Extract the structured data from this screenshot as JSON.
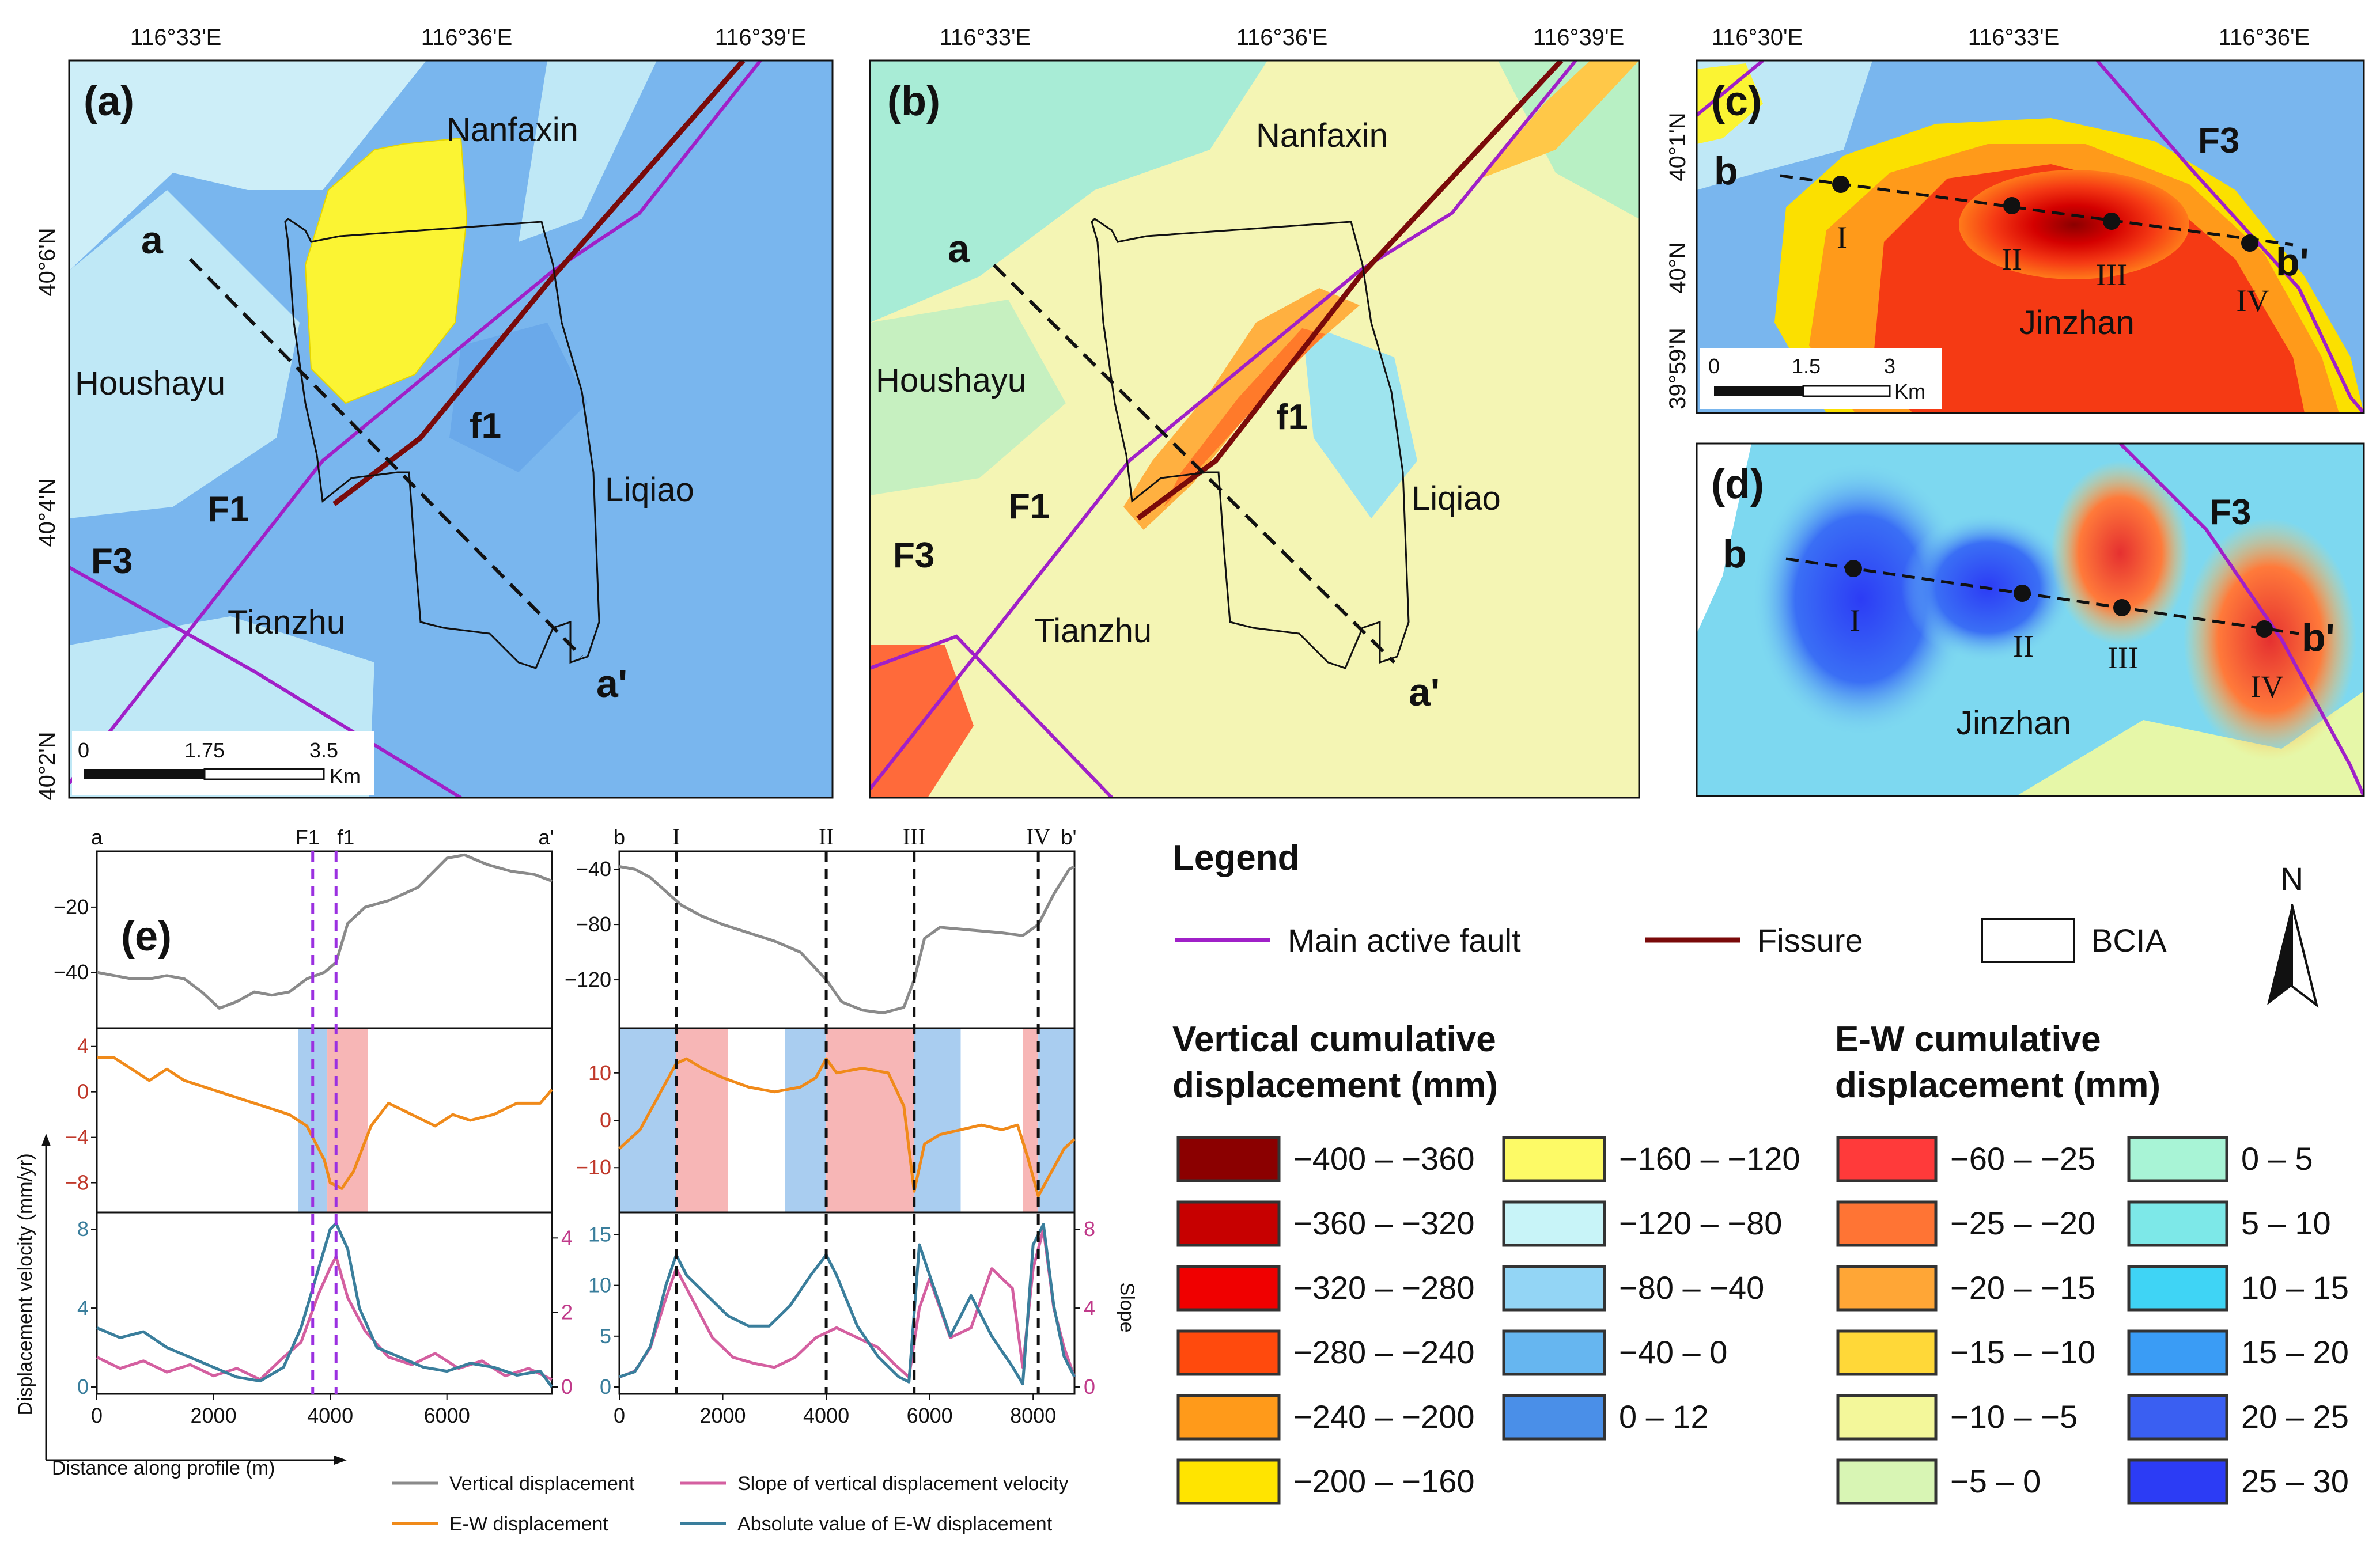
{
  "maps": {
    "a": {
      "label": "(a)",
      "lon_labels": [
        "116°33'E",
        "116°36'E",
        "116°39'E"
      ],
      "lat_labels": [
        "40°6'N",
        "40°4'N",
        "40°2'N"
      ],
      "places": {
        "nanfaxin": "Nanfaxin",
        "houshayu": "Houshayu",
        "liqiao": "Liqiao",
        "tianzhu": "Tianzhu"
      },
      "faults": {
        "f1": "F1",
        "f1_fissure": "f1",
        "f3": "F3"
      },
      "profile": {
        "start": "a",
        "end": "a'"
      },
      "scale": {
        "ticks": [
          "0",
          "1.75",
          "3.5"
        ],
        "unit": "Km"
      }
    },
    "b": {
      "label": "(b)",
      "lon_labels": [
        "116°33'E",
        "116°36'E",
        "116°39'E"
      ],
      "places": {
        "nanfaxin": "Nanfaxin",
        "houshayu": "Houshayu",
        "liqiao": "Liqiao",
        "tianzhu": "Tianzhu"
      },
      "faults": {
        "f1": "F1",
        "f1_fissure": "f1",
        "f3": "F3"
      },
      "profile": {
        "start": "a",
        "end": "a'"
      }
    },
    "c": {
      "label": "(c)",
      "lon_labels": [
        "116°30'E",
        "116°33'E",
        "116°36'E"
      ],
      "lat_labels": [
        "40°1'N",
        "40°N",
        "39°59'N"
      ],
      "place": "Jinzhan",
      "fault": "F3",
      "profile": {
        "start": "b",
        "end": "b'"
      },
      "points": [
        "I",
        "II",
        "III",
        "IV"
      ],
      "scale": {
        "ticks": [
          "0",
          "1.5",
          "3"
        ],
        "unit": "Km"
      }
    },
    "d": {
      "label": "(d)",
      "place": "Jinzhan",
      "fault": "F3",
      "profile": {
        "start": "b",
        "end": "b'"
      },
      "points": [
        "I",
        "II",
        "III",
        "IV"
      ]
    }
  },
  "profiles": {
    "label": "(e)",
    "left": {
      "start": "a",
      "end": "a'",
      "markers": [
        "F1",
        "f1"
      ],
      "marker_x_m": [
        3700,
        4100
      ],
      "x_ticks": [
        "0",
        "2000",
        "4000",
        "6000"
      ],
      "xlim": [
        0,
        7800
      ],
      "vertical_ticks": [
        "-20",
        "-40"
      ],
      "ew_ticks": [
        "4",
        "0",
        "-4",
        "-8"
      ],
      "vel_ticks": [
        "8",
        "4",
        "0"
      ],
      "slope_ticks": [
        "4",
        "2",
        "0"
      ],
      "bands": [
        {
          "from": 3450,
          "to": 3950,
          "color": "#a9cdf0"
        },
        {
          "from": 3950,
          "to": 4650,
          "color": "#f7b6b6"
        }
      ],
      "vertical": {
        "x": [
          0,
          300,
          600,
          900,
          1200,
          1500,
          1800,
          2100,
          2400,
          2700,
          3000,
          3300,
          3600,
          3900,
          4100,
          4300,
          4600,
          5000,
          5500,
          6000,
          6300,
          6700,
          7100,
          7500,
          7800
        ],
        "y": [
          -40,
          -41,
          -42,
          -42,
          -41,
          -42,
          -46,
          -51,
          -49,
          -46,
          -47,
          -46,
          -42,
          -40,
          -37,
          -25,
          -20,
          -18,
          -14,
          -5,
          -4,
          -7,
          -9,
          -10,
          -12
        ]
      },
      "ew": {
        "x": [
          0,
          300,
          600,
          900,
          1200,
          1500,
          1800,
          2100,
          2400,
          2700,
          3000,
          3300,
          3600,
          3900,
          4000,
          4200,
          4400,
          4700,
          5000,
          5400,
          5800,
          6100,
          6400,
          6800,
          7200,
          7600,
          7800
        ],
        "y": [
          3,
          3,
          2,
          1,
          2,
          1,
          0.5,
          0,
          -0.5,
          -1,
          -1.5,
          -2,
          -3,
          -6,
          -8,
          -8.5,
          -7,
          -3,
          -1,
          -2,
          -3,
          -2,
          -2.5,
          -2,
          -1,
          -1,
          0.2
        ]
      },
      "ew_abs": {
        "x": [
          0,
          400,
          800,
          1200,
          1600,
          2000,
          2400,
          2800,
          3200,
          3500,
          3800,
          4000,
          4100,
          4300,
          4500,
          4800,
          5200,
          5600,
          6000,
          6400,
          6800,
          7200,
          7600,
          7800
        ],
        "y": [
          3,
          2.5,
          2.8,
          2,
          1.5,
          1,
          0.5,
          0.3,
          1,
          3,
          6,
          8,
          8.3,
          7,
          4,
          2,
          1.5,
          1,
          0.8,
          1.2,
          1,
          0.6,
          0.8,
          0
        ]
      },
      "slope": {
        "x": [
          0,
          400,
          800,
          1200,
          1600,
          2000,
          2400,
          2800,
          3200,
          3500,
          3800,
          4000,
          4100,
          4300,
          4600,
          5000,
          5400,
          5800,
          6200,
          6600,
          7000,
          7400,
          7800
        ],
        "y": [
          0.8,
          0.5,
          0.7,
          0.4,
          0.6,
          0.3,
          0.5,
          0.2,
          0.8,
          1.2,
          2.5,
          3.2,
          3.5,
          2.4,
          1.5,
          0.8,
          0.6,
          0.9,
          0.5,
          0.7,
          0.3,
          0.5,
          0.2
        ]
      }
    },
    "right": {
      "start": "b",
      "end": "b'",
      "markers": [
        "I",
        "II",
        "III",
        "IV"
      ],
      "marker_x_m": [
        1100,
        4000,
        5700,
        8100
      ],
      "x_ticks": [
        "0",
        "2000",
        "4000",
        "6000",
        "8000"
      ],
      "xlim": [
        0,
        8800
      ],
      "vertical_ticks": [
        "-40",
        "-80",
        "-120"
      ],
      "ew_ticks": [
        "10",
        "0",
        "-10"
      ],
      "vel_ticks": [
        "15",
        "10",
        "5",
        "0"
      ],
      "slope_ticks": [
        "8",
        "4",
        "0"
      ],
      "bands": [
        {
          "from": 0,
          "to": 1100,
          "color": "#a9cdf0"
        },
        {
          "from": 1100,
          "to": 2100,
          "color": "#f7b6b6"
        },
        {
          "from": 3200,
          "to": 4000,
          "color": "#a9cdf0"
        },
        {
          "from": 4000,
          "to": 5700,
          "color": "#f7b6b6"
        },
        {
          "from": 5700,
          "to": 6600,
          "color": "#a9cdf0"
        },
        {
          "from": 7800,
          "to": 8100,
          "color": "#f7b6b6"
        },
        {
          "from": 8100,
          "to": 8800,
          "color": "#a9cdf0"
        }
      ],
      "vertical": {
        "x": [
          0,
          300,
          600,
          900,
          1200,
          1600,
          2000,
          2500,
          3000,
          3500,
          4000,
          4300,
          4700,
          5100,
          5500,
          5700,
          5900,
          6200,
          6800,
          7400,
          7800,
          8100,
          8400,
          8700,
          8800
        ],
        "y": [
          -38,
          -40,
          -46,
          -56,
          -66,
          -74,
          -80,
          -86,
          -92,
          -100,
          -120,
          -136,
          -142,
          -144,
          -140,
          -120,
          -90,
          -82,
          -84,
          -86,
          -88,
          -80,
          -58,
          -40,
          -38
        ]
      },
      "ew": {
        "x": [
          0,
          400,
          800,
          1100,
          1300,
          1600,
          2000,
          2500,
          3000,
          3500,
          3800,
          4000,
          4200,
          4700,
          5200,
          5500,
          5700,
          5900,
          6200,
          6600,
          7000,
          7400,
          7700,
          7900,
          8100,
          8300,
          8600,
          8800
        ],
        "y": [
          -6,
          -2,
          6,
          12,
          13,
          11,
          9,
          7,
          6,
          7,
          9,
          13,
          10,
          11,
          10,
          3,
          -15,
          -5,
          -3,
          -2,
          -1,
          -2,
          -1,
          -8,
          -16,
          -12,
          -6,
          -4
        ]
      },
      "ew_abs": {
        "x": [
          0,
          300,
          600,
          900,
          1100,
          1300,
          1700,
          2100,
          2500,
          2900,
          3300,
          3700,
          4000,
          4200,
          4600,
          5000,
          5400,
          5600,
          5800,
          6000,
          6400,
          6800,
          7200,
          7600,
          7800,
          8000,
          8200,
          8400,
          8600,
          8800
        ],
        "y": [
          1,
          1.5,
          4,
          10,
          13,
          11,
          9,
          7,
          6,
          6,
          8,
          11,
          13,
          11,
          6,
          3,
          1,
          0.5,
          14,
          11,
          5,
          9,
          5,
          2,
          0.3,
          14,
          16,
          8,
          3,
          1
        ]
      },
      "slope": {
        "x": [
          0,
          300,
          600,
          900,
          1100,
          1400,
          1800,
          2200,
          2600,
          3000,
          3400,
          3800,
          4200,
          4600,
          5000,
          5300,
          5600,
          5800,
          6000,
          6400,
          6800,
          7200,
          7600,
          7800,
          8000,
          8200,
          8400,
          8600,
          8800
        ],
        "y": [
          0.5,
          0.8,
          2,
          4.5,
          6,
          4.5,
          2.5,
          1.5,
          1.2,
          1,
          1.5,
          2.5,
          3,
          2.5,
          2,
          1.2,
          0.5,
          4,
          5.5,
          2.5,
          3,
          6,
          5,
          1,
          6,
          8,
          4,
          2,
          0.5
        ]
      }
    },
    "x_axis_label": "Distance along profile (m)",
    "y_axis_label": "Displacement velocity (mm/yr)",
    "right_y_axis_label": "Slope",
    "line_legend": [
      {
        "label": "Vertical displacement",
        "color": "#8a8a8a"
      },
      {
        "label": "Slope of vertical displacement velocity",
        "color": "#d45fa0"
      },
      {
        "label": "E-W displacement",
        "color": "#f08a1a"
      },
      {
        "label": "Absolute value of E-W displacement",
        "color": "#3a7e9c"
      }
    ]
  },
  "legend": {
    "title": "Legend",
    "fault_label": "Main active fault",
    "fissure_label": "Fissure",
    "bcia_label": "BCIA",
    "north_label": "N",
    "vertical_title_1": "Vertical cumulative",
    "vertical_title_2": "displacement  (mm)",
    "vertical_items": [
      {
        "label": "−400 – −360",
        "color": "#8b0000"
      },
      {
        "label": "−360 – −320",
        "color": "#c70000"
      },
      {
        "label": "−320 – −280",
        "color": "#f00000"
      },
      {
        "label": "−280 – −240",
        "color": "#ff4a0d"
      },
      {
        "label": "−240 – −200",
        "color": "#ff9a1a"
      },
      {
        "label": "−200 – −160",
        "color": "#ffe400"
      },
      {
        "label": "−160 – −120",
        "color": "#fdfa66"
      },
      {
        "label": "−120 – −80",
        "color": "#c8f4f8"
      },
      {
        "label": "−80 – −40",
        "color": "#93d5f5"
      },
      {
        "label": "−40 – 0",
        "color": "#66b6f0"
      },
      {
        "label": "0 – 12",
        "color": "#4a8fe8"
      }
    ],
    "ew_title_1": "E-W cumulative",
    "ew_title_2": "displacement  (mm)",
    "ew_items": [
      {
        "label": "−60 – −25",
        "color": "#ff3a3a"
      },
      {
        "label": "−25 – −20",
        "color": "#ff7434"
      },
      {
        "label": "−20 – −15",
        "color": "#ffa636"
      },
      {
        "label": "−15 – −10",
        "color": "#ffd838"
      },
      {
        "label": "−10 – −5",
        "color": "#f3f79a"
      },
      {
        "label": "−5 – 0",
        "color": "#d8f5b4"
      },
      {
        "label": "0 – 5",
        "color": "#a8f4d6"
      },
      {
        "label": "5 – 10",
        "color": "#7de8e8"
      },
      {
        "label": "10 – 15",
        "color": "#3fd4f5"
      },
      {
        "label": "15 – 20",
        "color": "#3a9cf5"
      },
      {
        "label": "20 – 25",
        "color": "#3a5ff2"
      },
      {
        "label": "25 – 30",
        "color": "#2c3cf5"
      }
    ]
  },
  "colors": {
    "fault": "#a020c8",
    "fissure": "#7a0a0a",
    "vertical_base": "#7eb8ee",
    "ew_base": "#f4f5b4"
  }
}
